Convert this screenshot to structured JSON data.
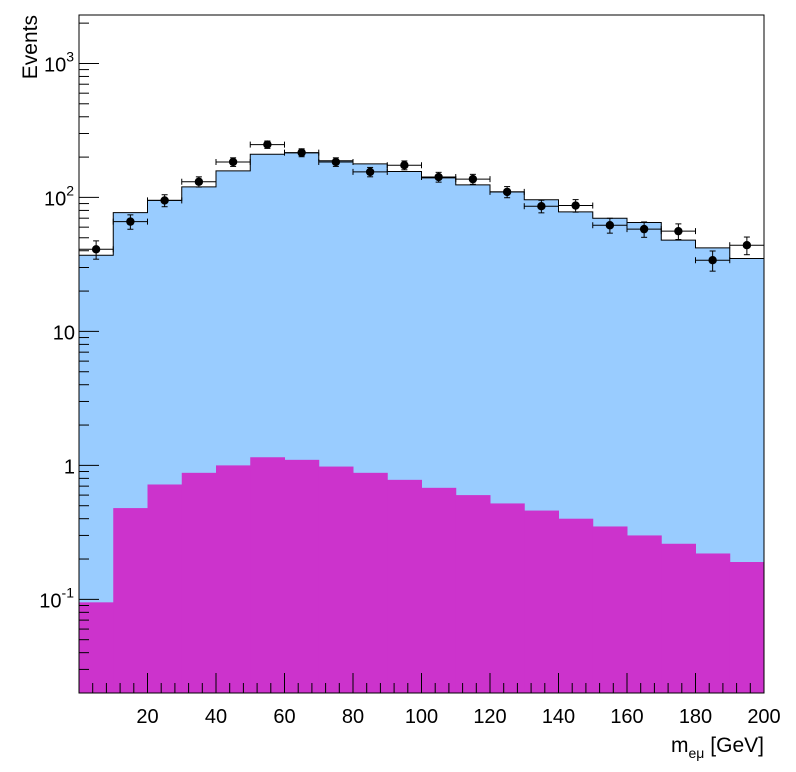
{
  "chart_data": {
    "type": "bar",
    "scale": {
      "y": "log"
    },
    "xlim": [
      0,
      200
    ],
    "ylim": [
      0.02,
      2300
    ],
    "ylabel": "Events",
    "xlabel": {
      "main": "m",
      "subscript": "eμ",
      "unit": "[GeV]"
    },
    "x_ticks": [
      {
        "value": 20,
        "label": "20"
      },
      {
        "value": 40,
        "label": "40"
      },
      {
        "value": 60,
        "label": "60"
      },
      {
        "value": 80,
        "label": "80"
      },
      {
        "value": 100,
        "label": "100"
      },
      {
        "value": 120,
        "label": "120"
      },
      {
        "value": 140,
        "label": "140"
      },
      {
        "value": 160,
        "label": "160"
      },
      {
        "value": 180,
        "label": "180"
      },
      {
        "value": 200,
        "label": "200"
      }
    ],
    "y_ticks": [
      {
        "value": 0.1,
        "base": "10",
        "exp": "-1"
      },
      {
        "value": 1,
        "base": "1",
        "exp": ""
      },
      {
        "value": 10,
        "base": "10",
        "exp": ""
      },
      {
        "value": 100,
        "base": "10",
        "exp": "2"
      },
      {
        "value": 1000,
        "base": "10",
        "exp": "3"
      }
    ],
    "bin_edges": [
      0,
      10,
      20,
      30,
      40,
      50,
      60,
      70,
      80,
      90,
      100,
      110,
      120,
      130,
      140,
      150,
      160,
      170,
      180,
      190,
      200
    ],
    "series": [
      {
        "kind": "stack-bottom",
        "color": "#cc33cc",
        "values": [
          0.095,
          0.48,
          0.72,
          0.88,
          1.0,
          1.15,
          1.1,
          0.98,
          0.88,
          0.78,
          0.68,
          0.6,
          0.52,
          0.46,
          0.4,
          0.35,
          0.3,
          0.26,
          0.22,
          0.19
        ]
      },
      {
        "kind": "stack-total",
        "color": "#99ccff",
        "values": [
          37,
          77,
          95,
          120,
          158,
          210,
          215,
          188,
          178,
          156,
          140,
          124,
          110,
          96,
          78,
          70,
          65,
          48,
          42,
          35
        ]
      },
      {
        "kind": "data",
        "color": "#000000",
        "x": [
          5,
          15,
          25,
          35,
          45,
          55,
          65,
          75,
          85,
          95,
          105,
          115,
          125,
          135,
          145,
          155,
          165,
          175,
          185,
          195
        ],
        "y": [
          41,
          66,
          95,
          131,
          184,
          248,
          216,
          184,
          155,
          174,
          142,
          137,
          110,
          86,
          87,
          62,
          58,
          56,
          34,
          44
        ]
      }
    ]
  }
}
